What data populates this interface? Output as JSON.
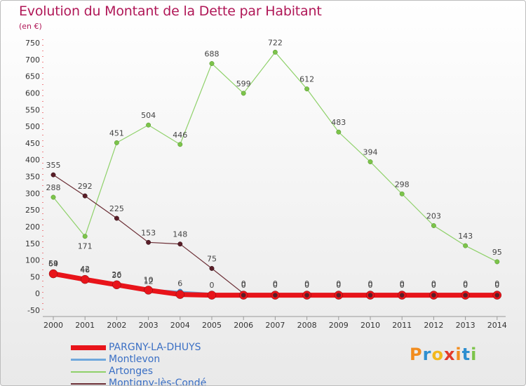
{
  "title": "Evolution du Montant de la Dette par Habitant",
  "subtitle": "(en €)",
  "logo": "Proxiti",
  "chart_data": {
    "type": "line",
    "x": [
      "2000",
      "2001",
      "2002",
      "2003",
      "2004",
      "2005",
      "2006",
      "2007",
      "2008",
      "2009",
      "2010",
      "2011",
      "2012",
      "2013",
      "2014"
    ],
    "ylim": [
      -50,
      750
    ],
    "yticks": [
      -50,
      0,
      50,
      100,
      150,
      200,
      250,
      300,
      350,
      400,
      450,
      500,
      550,
      600,
      650,
      700,
      750
    ],
    "grid": false,
    "legend_position": "bottom-left",
    "series": [
      {
        "name": "PARGNY-LA-DHUYS",
        "color": "#e8141a",
        "values": [
          59,
          42,
          26,
          10,
          -3,
          -5,
          -5,
          -5,
          -5,
          -5,
          -5,
          -5,
          -5,
          -5,
          -5
        ]
      },
      {
        "name": "Montlevon",
        "color": "#6fa8dc",
        "values": [
          64,
          46,
          30,
          12,
          6,
          0,
          0,
          0,
          0,
          0,
          0,
          0,
          0,
          0,
          0
        ]
      },
      {
        "name": "Artonges",
        "color": "#8fd16a",
        "values": [
          288,
          171,
          451,
          504,
          446,
          688,
          599,
          722,
          612,
          483,
          394,
          298,
          203,
          143,
          95
        ]
      },
      {
        "name": "Montigny-lès-Condé",
        "color": "#6b2e35",
        "values": [
          355,
          292,
          225,
          153,
          148,
          75,
          0,
          0,
          0,
          0,
          0,
          0,
          0,
          0,
          0
        ]
      }
    ],
    "data_labels": [
      {
        "series": "Artonges",
        "values": [
          "288",
          "171",
          "451",
          "504",
          "446",
          "688",
          "599",
          "722",
          "612",
          "483",
          "394",
          "298",
          "203",
          "143",
          "95"
        ]
      },
      {
        "series": "Montigny-lès-Condé",
        "values": [
          "355",
          "292",
          "225",
          "153",
          "148",
          "75",
          "",
          "",
          "",
          "",
          "",
          "",
          "",
          "",
          ""
        ]
      },
      {
        "series": "Montlevon",
        "values": [
          "64",
          "46",
          "30",
          "12",
          "6",
          "0",
          "0",
          "0",
          "0",
          "0",
          "0",
          "0",
          "0",
          "0",
          "0"
        ]
      },
      {
        "series": "PARGNY-LA-DHUYS",
        "values": [
          "59",
          "42",
          "26",
          "10",
          "",
          "",
          "",
          "",
          "",
          "",
          "",
          "",
          "",
          "",
          ""
        ]
      },
      {
        "series": "bottom",
        "values": [
          "",
          "",
          "",
          "",
          "",
          "",
          "0",
          "0",
          "0",
          "0",
          "0",
          "0",
          "0",
          "0",
          "0"
        ]
      }
    ]
  }
}
